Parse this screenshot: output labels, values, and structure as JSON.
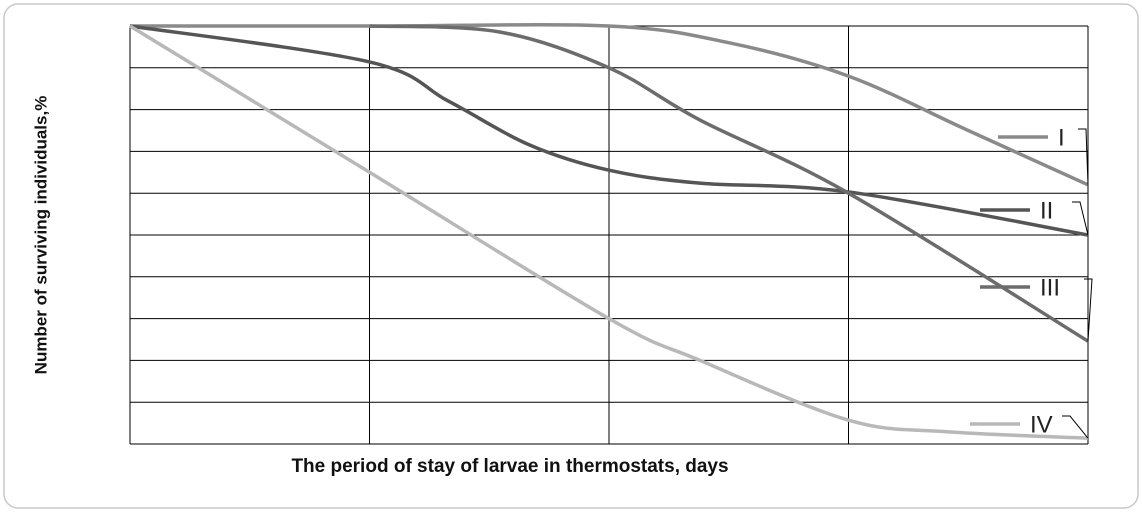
{
  "chart_data": {
    "type": "line",
    "x_label": "The period of stay of larvae in thermostats, days",
    "y_label": "Number of surviving individuals,%",
    "xlim": [
      0,
      4
    ],
    "ylim": [
      0,
      100
    ],
    "xticks": [
      0,
      1,
      2,
      3,
      4
    ],
    "yticks": [
      0,
      10,
      20,
      30,
      40,
      50,
      60,
      70,
      80,
      90,
      100
    ],
    "grid": true,
    "legend": "right",
    "series": [
      {
        "name": "I",
        "color": "#8a8a8a",
        "x": [
          0,
          1,
          2,
          2.5,
          3,
          3.5,
          4
        ],
        "values": [
          100,
          100,
          100,
          96,
          88,
          75,
          62
        ]
      },
      {
        "name": "II",
        "color": "#555555",
        "x": [
          0,
          1,
          1.33,
          1.67,
          2,
          2.38,
          3,
          4
        ],
        "values": [
          100,
          91.4,
          82,
          71.5,
          65.5,
          62.4,
          60.3,
          50
        ]
      },
      {
        "name": "III",
        "color": "#6c6c6c",
        "x": [
          1,
          1.54,
          2,
          2.38,
          3,
          4
        ],
        "values": [
          100,
          98.6,
          90,
          77.5,
          60,
          24.6
        ]
      },
      {
        "name": "IV",
        "color": "#b8b8b8",
        "x": [
          0,
          1,
          2,
          2.38,
          3,
          3.42,
          4
        ],
        "values": [
          100,
          65,
          30,
          20,
          5.7,
          2.9,
          1.4
        ]
      }
    ]
  }
}
